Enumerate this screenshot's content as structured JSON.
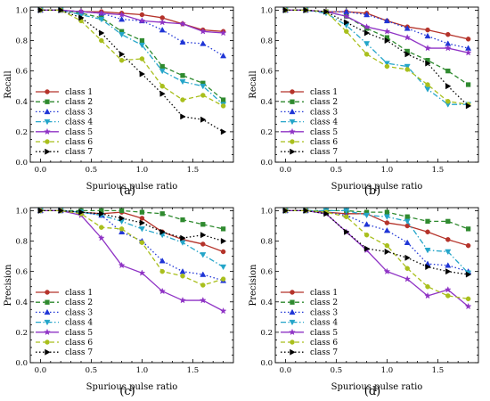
{
  "chart_data": [
    {
      "type": "line",
      "panel_label": "(a)",
      "xlabel": "Spurious pulse ratio",
      "ylabel": "Recall",
      "xlim": [
        -0.1,
        1.9
      ],
      "ylim": [
        0,
        1.02
      ],
      "xticks": [
        "0.0",
        "0.5",
        "1.0",
        "1.5"
      ],
      "xtick_values": [
        0.0,
        0.5,
        1.0,
        1.5
      ],
      "yticks": [
        "0.0",
        "0.2",
        "0.4",
        "0.6",
        "0.8",
        "1.0"
      ],
      "ytick_values": [
        0.0,
        0.2,
        0.4,
        0.6,
        0.8,
        1.0
      ],
      "legend_position": "bottom-left",
      "x": [
        0.0,
        0.2,
        0.4,
        0.6,
        0.8,
        1.0,
        1.2,
        1.4,
        1.6,
        1.8
      ],
      "series": [
        {
          "name": "class 1",
          "color": "#b5332a",
          "dash": "solid",
          "marker": "circle",
          "values": [
            1.0,
            1.0,
            0.99,
            0.99,
            0.98,
            0.97,
            0.95,
            0.91,
            0.87,
            0.86
          ]
        },
        {
          "name": "class 2",
          "color": "#2f8a2f",
          "dash": "dashed",
          "marker": "square",
          "values": [
            1.0,
            1.0,
            0.98,
            0.95,
            0.86,
            0.8,
            0.63,
            0.57,
            0.52,
            0.41
          ]
        },
        {
          "name": "class 3",
          "color": "#1f35d6",
          "dash": "dotted",
          "marker": "triangle-up",
          "values": [
            1.0,
            1.0,
            0.99,
            0.98,
            0.94,
            0.93,
            0.87,
            0.79,
            0.78,
            0.7
          ]
        },
        {
          "name": "class 4",
          "color": "#24a5c9",
          "dash": "dashdot",
          "marker": "triangle-down",
          "values": [
            1.0,
            1.0,
            0.97,
            0.94,
            0.84,
            0.77,
            0.6,
            0.53,
            0.5,
            0.38
          ]
        },
        {
          "name": "class 5",
          "color": "#8f33c5",
          "dash": "solid",
          "marker": "star",
          "values": [
            1.0,
            1.0,
            0.99,
            0.98,
            0.97,
            0.93,
            0.92,
            0.91,
            0.86,
            0.85
          ]
        },
        {
          "name": "class 6",
          "color": "#a9bf1c",
          "dash": "dashed",
          "marker": "circle",
          "values": [
            1.0,
            1.0,
            0.93,
            0.8,
            0.67,
            0.68,
            0.5,
            0.41,
            0.44,
            0.37
          ]
        },
        {
          "name": "class 7",
          "color": "#000000",
          "dash": "dotted",
          "marker": "triangle-right",
          "values": [
            1.0,
            1.0,
            0.95,
            0.85,
            0.71,
            0.58,
            0.45,
            0.3,
            0.28,
            0.2
          ]
        }
      ]
    },
    {
      "type": "line",
      "panel_label": "(b)",
      "xlabel": "Spurious pulse ratio",
      "ylabel": "Recall",
      "xlim": [
        -0.1,
        1.9
      ],
      "ylim": [
        0,
        1.02
      ],
      "xticks": [
        "0.0",
        "0.5",
        "1.0",
        "1.5"
      ],
      "xtick_values": [
        0.0,
        0.5,
        1.0,
        1.5
      ],
      "yticks": [
        "0.0",
        "0.2",
        "0.4",
        "0.6",
        "0.8",
        "1.0"
      ],
      "ytick_values": [
        0.0,
        0.2,
        0.4,
        0.6,
        0.8,
        1.0
      ],
      "legend_position": "bottom-left",
      "x": [
        0.0,
        0.2,
        0.4,
        0.6,
        0.8,
        1.0,
        1.2,
        1.4,
        1.6,
        1.8
      ],
      "series": [
        {
          "name": "class 1",
          "color": "#b5332a",
          "dash": "solid",
          "marker": "circle",
          "values": [
            1.0,
            1.0,
            0.99,
            0.99,
            0.98,
            0.93,
            0.89,
            0.87,
            0.84,
            0.81
          ]
        },
        {
          "name": "class 2",
          "color": "#2f8a2f",
          "dash": "dashed",
          "marker": "square",
          "values": [
            1.0,
            1.0,
            0.99,
            0.96,
            0.88,
            0.82,
            0.73,
            0.67,
            0.6,
            0.51
          ]
        },
        {
          "name": "class 3",
          "color": "#1f35d6",
          "dash": "dotted",
          "marker": "triangle-up",
          "values": [
            1.0,
            1.0,
            0.99,
            0.99,
            0.97,
            0.93,
            0.88,
            0.83,
            0.78,
            0.75
          ]
        },
        {
          "name": "class 4",
          "color": "#24a5c9",
          "dash": "dashdot",
          "marker": "triangle-down",
          "values": [
            1.0,
            1.0,
            0.98,
            0.9,
            0.78,
            0.65,
            0.63,
            0.48,
            0.38,
            0.38
          ]
        },
        {
          "name": "class 5",
          "color": "#8f33c5",
          "dash": "solid",
          "marker": "star",
          "values": [
            1.0,
            1.0,
            0.99,
            0.96,
            0.89,
            0.86,
            0.82,
            0.75,
            0.75,
            0.72
          ]
        },
        {
          "name": "class 6",
          "color": "#a9bf1c",
          "dash": "dashed",
          "marker": "circle",
          "values": [
            1.0,
            1.0,
            0.99,
            0.86,
            0.71,
            0.63,
            0.61,
            0.51,
            0.4,
            0.38
          ]
        },
        {
          "name": "class 7",
          "color": "#000000",
          "dash": "dotted",
          "marker": "triangle-right",
          "values": [
            1.0,
            1.0,
            0.99,
            0.92,
            0.85,
            0.8,
            0.71,
            0.65,
            0.5,
            0.37
          ]
        }
      ]
    },
    {
      "type": "line",
      "panel_label": "(c)",
      "xlabel": "Spurious pulse ratio",
      "ylabel": "Precision",
      "xlim": [
        -0.1,
        1.9
      ],
      "ylim": [
        0,
        1.02
      ],
      "xticks": [
        "0.0",
        "0.5",
        "1.0",
        "1.5"
      ],
      "xtick_values": [
        0.0,
        0.5,
        1.0,
        1.5
      ],
      "yticks": [
        "0.0",
        "0.2",
        "0.4",
        "0.6",
        "0.8",
        "1.0"
      ],
      "ytick_values": [
        0.0,
        0.2,
        0.4,
        0.6,
        0.8,
        1.0
      ],
      "legend_position": "bottom-left",
      "x": [
        0.0,
        0.2,
        0.4,
        0.6,
        0.8,
        1.0,
        1.2,
        1.4,
        1.6,
        1.8
      ],
      "series": [
        {
          "name": "class 1",
          "color": "#b5332a",
          "dash": "solid",
          "marker": "circle",
          "values": [
            1.0,
            1.0,
            0.99,
            0.98,
            0.99,
            0.95,
            0.86,
            0.81,
            0.78,
            0.73
          ]
        },
        {
          "name": "class 2",
          "color": "#2f8a2f",
          "dash": "dashed",
          "marker": "square",
          "values": [
            1.0,
            1.0,
            1.0,
            1.0,
            1.0,
            0.99,
            0.98,
            0.94,
            0.91,
            0.88
          ]
        },
        {
          "name": "class 3",
          "color": "#1f35d6",
          "dash": "dotted",
          "marker": "triangle-up",
          "values": [
            1.0,
            1.0,
            0.99,
            0.97,
            0.86,
            0.8,
            0.67,
            0.6,
            0.58,
            0.54
          ]
        },
        {
          "name": "class 4",
          "color": "#24a5c9",
          "dash": "dashdot",
          "marker": "triangle-down",
          "values": [
            1.0,
            1.0,
            0.99,
            0.97,
            0.93,
            0.88,
            0.84,
            0.79,
            0.71,
            0.63
          ]
        },
        {
          "name": "class 5",
          "color": "#8f33c5",
          "dash": "solid",
          "marker": "star",
          "values": [
            1.0,
            1.0,
            0.97,
            0.82,
            0.64,
            0.59,
            0.47,
            0.41,
            0.41,
            0.34
          ]
        },
        {
          "name": "class 6",
          "color": "#a9bf1c",
          "dash": "dashed",
          "marker": "circle",
          "values": [
            1.0,
            1.0,
            0.98,
            0.89,
            0.88,
            0.79,
            0.6,
            0.57,
            0.51,
            0.55
          ]
        },
        {
          "name": "class 7",
          "color": "#000000",
          "dash": "dotted",
          "marker": "triangle-right",
          "values": [
            1.0,
            1.0,
            0.99,
            0.98,
            0.95,
            0.92,
            0.86,
            0.82,
            0.84,
            0.8
          ]
        }
      ]
    },
    {
      "type": "line",
      "panel_label": "(d)",
      "xlabel": "Spurious pulse ratio",
      "ylabel": "Precision",
      "xlim": [
        -0.1,
        1.9
      ],
      "ylim": [
        0,
        1.02
      ],
      "xticks": [
        "0.0",
        "0.5",
        "1.0",
        "1.5"
      ],
      "xtick_values": [
        0.0,
        0.5,
        1.0,
        1.5
      ],
      "yticks": [
        "0.0",
        "0.2",
        "0.4",
        "0.6",
        "0.8",
        "1.0"
      ],
      "ytick_values": [
        0.0,
        0.2,
        0.4,
        0.6,
        0.8,
        1.0
      ],
      "legend_position": "bottom-left",
      "x": [
        0.0,
        0.2,
        0.4,
        0.6,
        0.8,
        1.0,
        1.2,
        1.4,
        1.6,
        1.8
      ],
      "series": [
        {
          "name": "class 1",
          "color": "#b5332a",
          "dash": "solid",
          "marker": "circle",
          "values": [
            1.0,
            1.0,
            0.99,
            0.98,
            0.98,
            0.92,
            0.9,
            0.86,
            0.81,
            0.77
          ]
        },
        {
          "name": "class 2",
          "color": "#2f8a2f",
          "dash": "dashed",
          "marker": "square",
          "values": [
            1.0,
            1.0,
            1.0,
            1.0,
            0.99,
            0.99,
            0.96,
            0.93,
            0.93,
            0.88
          ]
        },
        {
          "name": "class 3",
          "color": "#1f35d6",
          "dash": "dotted",
          "marker": "triangle-up",
          "values": [
            1.0,
            1.0,
            0.99,
            0.97,
            0.91,
            0.87,
            0.79,
            0.65,
            0.64,
            0.6
          ]
        },
        {
          "name": "class 4",
          "color": "#24a5c9",
          "dash": "dashdot",
          "marker": "triangle-down",
          "values": [
            1.0,
            1.0,
            1.0,
            1.0,
            0.97,
            0.96,
            0.93,
            0.74,
            0.73,
            0.59
          ]
        },
        {
          "name": "class 5",
          "color": "#8f33c5",
          "dash": "solid",
          "marker": "star",
          "values": [
            1.0,
            1.0,
            0.98,
            0.86,
            0.74,
            0.6,
            0.55,
            0.44,
            0.48,
            0.37
          ]
        },
        {
          "name": "class 6",
          "color": "#a9bf1c",
          "dash": "dashed",
          "marker": "circle",
          "values": [
            1.0,
            1.0,
            0.99,
            0.96,
            0.84,
            0.77,
            0.62,
            0.5,
            0.44,
            0.42
          ]
        },
        {
          "name": "class 7",
          "color": "#000000",
          "dash": "dotted",
          "marker": "triangle-right",
          "values": [
            1.0,
            1.0,
            0.98,
            0.86,
            0.75,
            0.73,
            0.69,
            0.63,
            0.6,
            0.58
          ]
        }
      ]
    }
  ]
}
